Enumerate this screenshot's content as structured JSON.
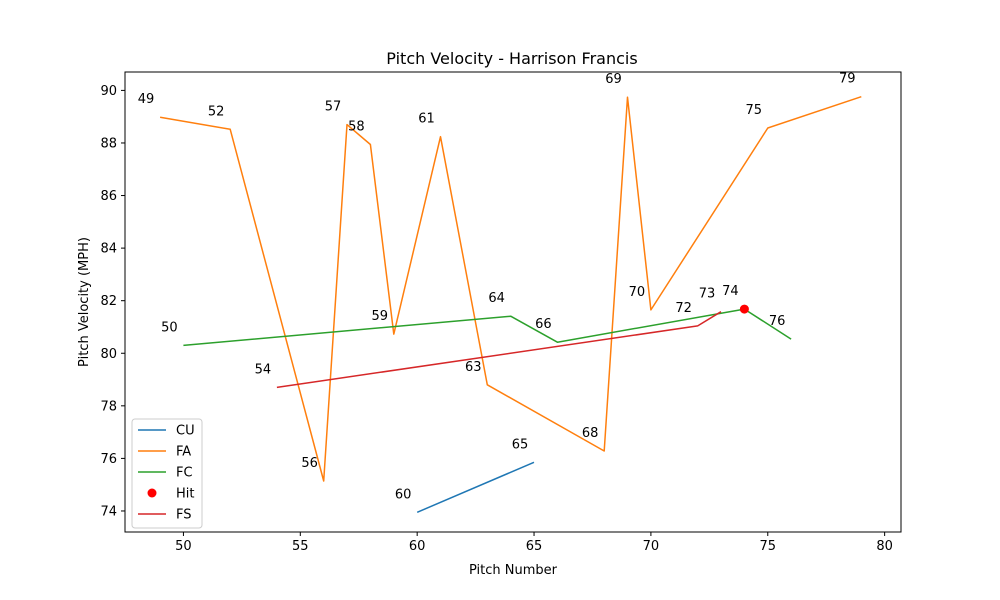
{
  "chart_data": {
    "type": "line",
    "title": "Pitch Velocity - Harrison Francis",
    "xlabel": "Pitch Number",
    "ylabel": "Pitch Velocity (MPH)",
    "xlim": [
      47.5,
      80.7
    ],
    "ylim": [
      73.2,
      90.7
    ],
    "xticks": [
      50,
      55,
      60,
      65,
      70,
      75,
      80
    ],
    "yticks": [
      74,
      76,
      78,
      80,
      82,
      84,
      86,
      88,
      90
    ],
    "legend_position": "lower-left",
    "series": [
      {
        "name": "CU",
        "color": "#1f77b4",
        "points": [
          {
            "x": 60,
            "y": 73.95
          },
          {
            "x": 65,
            "y": 75.85
          }
        ]
      },
      {
        "name": "FA",
        "color": "#ff7f0e",
        "points": [
          {
            "x": 49,
            "y": 88.98
          },
          {
            "x": 52,
            "y": 88.52
          },
          {
            "x": 56,
            "y": 75.14
          },
          {
            "x": 57,
            "y": 88.7
          },
          {
            "x": 58,
            "y": 87.94
          },
          {
            "x": 59,
            "y": 80.73
          },
          {
            "x": 61,
            "y": 88.24
          },
          {
            "x": 63,
            "y": 78.8
          },
          {
            "x": 68,
            "y": 76.28
          },
          {
            "x": 69,
            "y": 89.74
          },
          {
            "x": 70,
            "y": 81.65
          },
          {
            "x": 75,
            "y": 88.57
          },
          {
            "x": 79,
            "y": 89.76
          }
        ]
      },
      {
        "name": "FC",
        "color": "#2ca02c",
        "points": [
          {
            "x": 50,
            "y": 80.3
          },
          {
            "x": 64,
            "y": 81.41
          },
          {
            "x": 66,
            "y": 80.42
          },
          {
            "x": 74,
            "y": 81.68
          },
          {
            "x": 76,
            "y": 80.54
          }
        ]
      },
      {
        "name": "FS",
        "color": "#d62728",
        "points": [
          {
            "x": 54,
            "y": 78.7
          },
          {
            "x": 72,
            "y": 81.04
          },
          {
            "x": 73,
            "y": 81.58
          }
        ]
      }
    ],
    "hits": {
      "name": "Hit",
      "color": "#ff0000",
      "points": [
        {
          "x": 74,
          "y": 81.68
        }
      ]
    },
    "point_labels": [
      {
        "text": "49",
        "x": 49,
        "y": 88.98
      },
      {
        "text": "50",
        "x": 50,
        "y": 80.3
      },
      {
        "text": "52",
        "x": 52,
        "y": 88.52
      },
      {
        "text": "54",
        "x": 54,
        "y": 78.7
      },
      {
        "text": "56",
        "x": 56,
        "y": 75.14
      },
      {
        "text": "57",
        "x": 57,
        "y": 88.7
      },
      {
        "text": "58",
        "x": 58,
        "y": 87.94
      },
      {
        "text": "59",
        "x": 59,
        "y": 80.73
      },
      {
        "text": "60",
        "x": 60,
        "y": 73.95
      },
      {
        "text": "61",
        "x": 61,
        "y": 88.24
      },
      {
        "text": "63",
        "x": 63,
        "y": 78.8
      },
      {
        "text": "64",
        "x": 64,
        "y": 81.41
      },
      {
        "text": "65",
        "x": 65,
        "y": 75.85
      },
      {
        "text": "66",
        "x": 66,
        "y": 80.42
      },
      {
        "text": "68",
        "x": 68,
        "y": 76.28
      },
      {
        "text": "69",
        "x": 69,
        "y": 89.74
      },
      {
        "text": "70",
        "x": 70,
        "y": 81.65
      },
      {
        "text": "72",
        "x": 72,
        "y": 81.04
      },
      {
        "text": "73",
        "x": 73,
        "y": 81.58
      },
      {
        "text": "74",
        "x": 74,
        "y": 81.68
      },
      {
        "text": "75",
        "x": 75,
        "y": 88.57
      },
      {
        "text": "76",
        "x": 76,
        "y": 80.54
      },
      {
        "text": "79",
        "x": 79,
        "y": 89.76
      }
    ],
    "legend": [
      {
        "name": "CU",
        "kind": "line",
        "color": "#1f77b4"
      },
      {
        "name": "FA",
        "kind": "line",
        "color": "#ff7f0e"
      },
      {
        "name": "FC",
        "kind": "line",
        "color": "#2ca02c"
      },
      {
        "name": "Hit",
        "kind": "marker",
        "color": "#ff0000"
      },
      {
        "name": "FS",
        "kind": "line",
        "color": "#d62728"
      }
    ]
  }
}
